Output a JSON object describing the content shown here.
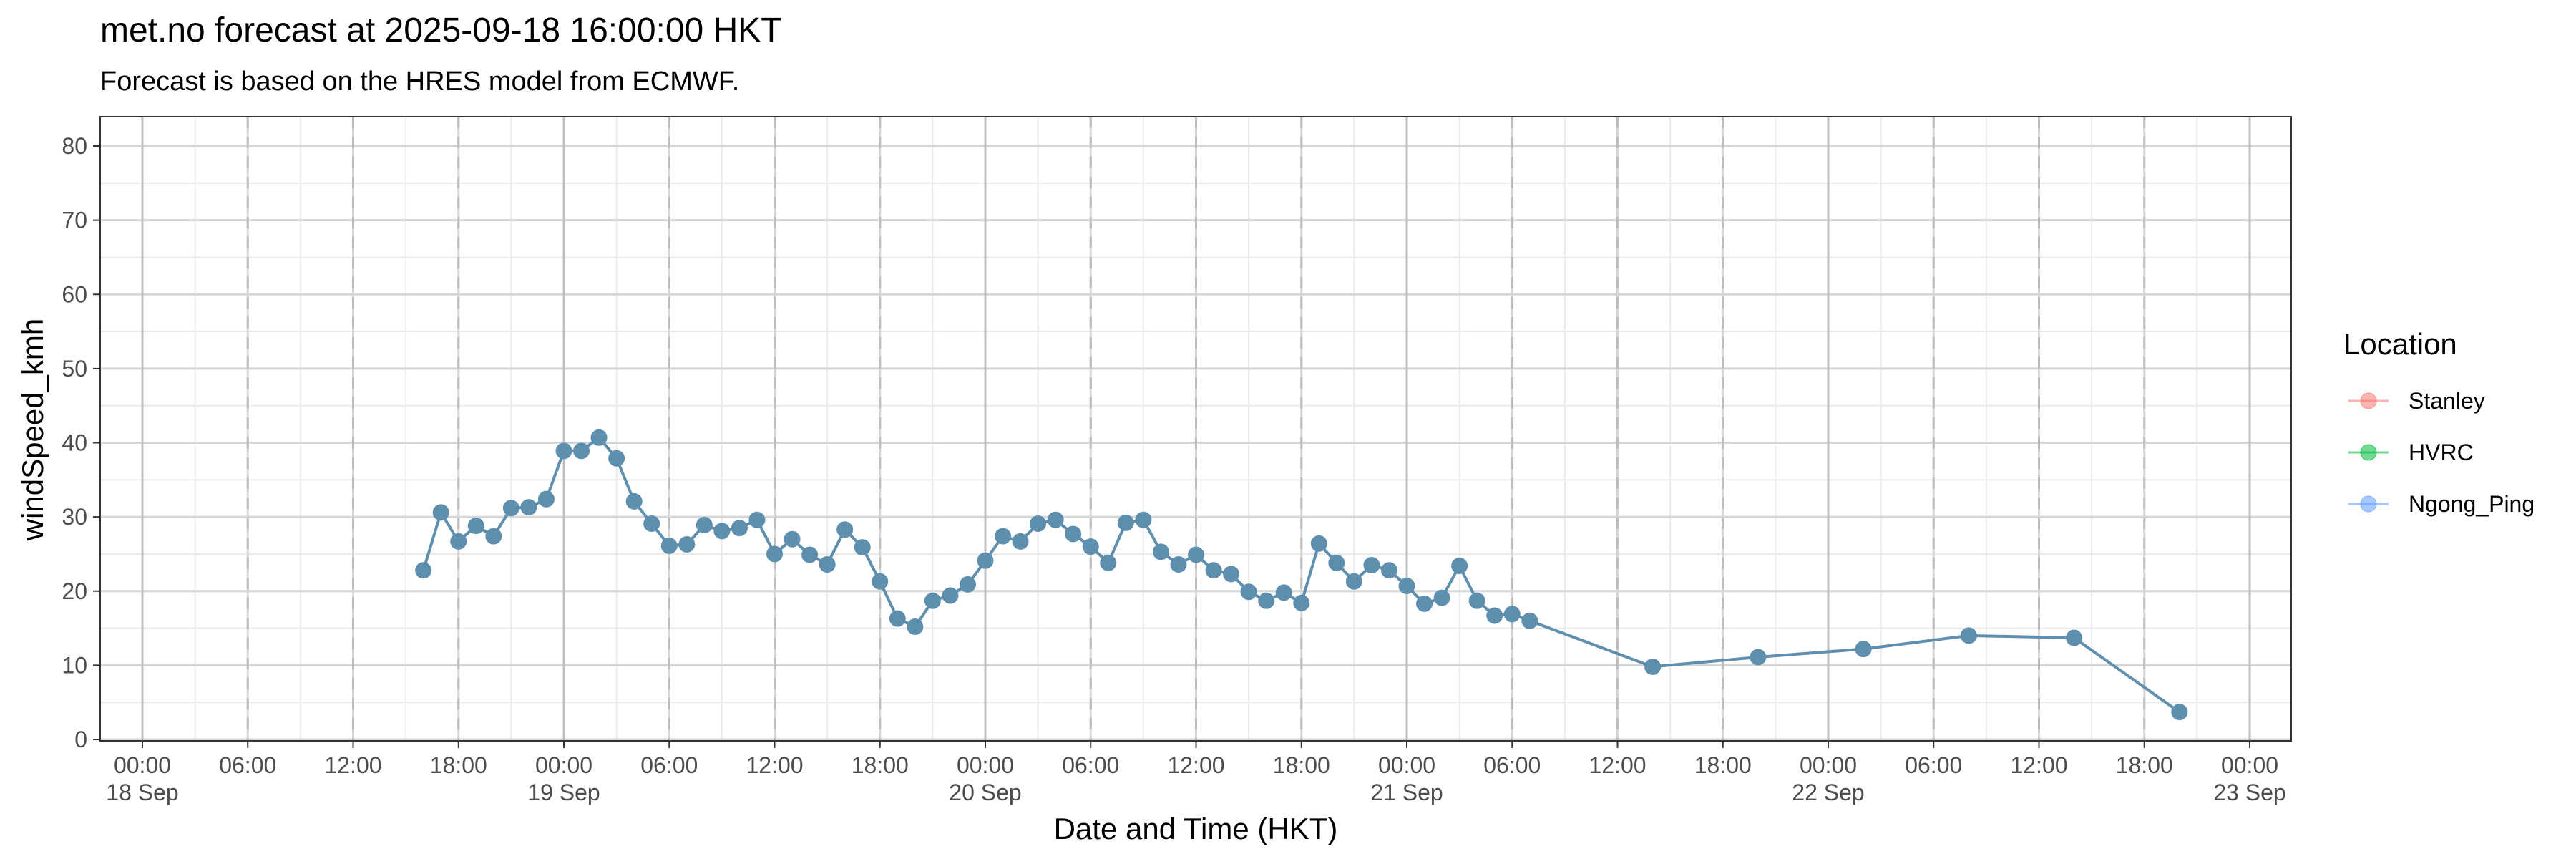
{
  "chart_data": {
    "type": "line",
    "title": "met.no forecast at 2025-09-18 16:00:00 HKT",
    "subtitle": "Forecast is based on the HRES model from ECMWF.",
    "xlabel": "Date and Time (HKT)",
    "ylabel": "windSpeed_kmh",
    "x_range": [
      "2025-09-18 00:00",
      "2025-09-23 00:00"
    ],
    "ylim": [
      0,
      83
    ],
    "yticks": [
      0,
      10,
      20,
      30,
      40,
      50,
      60,
      70,
      80
    ],
    "x_tick_labels": [
      {
        "time": "2025-09-18 00:00",
        "line1": "00:00",
        "line2": "18 Sep"
      },
      {
        "time": "2025-09-18 06:00",
        "line1": "06:00",
        "line2": ""
      },
      {
        "time": "2025-09-18 12:00",
        "line1": "12:00",
        "line2": ""
      },
      {
        "time": "2025-09-18 18:00",
        "line1": "18:00",
        "line2": ""
      },
      {
        "time": "2025-09-19 00:00",
        "line1": "00:00",
        "line2": "19 Sep"
      },
      {
        "time": "2025-09-19 06:00",
        "line1": "06:00",
        "line2": ""
      },
      {
        "time": "2025-09-19 12:00",
        "line1": "12:00",
        "line2": ""
      },
      {
        "time": "2025-09-19 18:00",
        "line1": "18:00",
        "line2": ""
      },
      {
        "time": "2025-09-20 00:00",
        "line1": "00:00",
        "line2": "20 Sep"
      },
      {
        "time": "2025-09-20 06:00",
        "line1": "06:00",
        "line2": ""
      },
      {
        "time": "2025-09-20 12:00",
        "line1": "12:00",
        "line2": ""
      },
      {
        "time": "2025-09-20 18:00",
        "line1": "18:00",
        "line2": ""
      },
      {
        "time": "2025-09-21 00:00",
        "line1": "00:00",
        "line2": "21 Sep"
      },
      {
        "time": "2025-09-21 06:00",
        "line1": "06:00",
        "line2": ""
      },
      {
        "time": "2025-09-21 12:00",
        "line1": "12:00",
        "line2": ""
      },
      {
        "time": "2025-09-21 18:00",
        "line1": "18:00",
        "line2": ""
      },
      {
        "time": "2025-09-22 00:00",
        "line1": "00:00",
        "line2": "22 Sep"
      },
      {
        "time": "2025-09-22 06:00",
        "line1": "06:00",
        "line2": ""
      },
      {
        "time": "2025-09-22 12:00",
        "line1": "12:00",
        "line2": ""
      },
      {
        "time": "2025-09-22 18:00",
        "line1": "18:00",
        "line2": ""
      },
      {
        "time": "2025-09-23 00:00",
        "line1": "00:00",
        "line2": "23 Sep"
      }
    ],
    "grid": true,
    "dashed_vlines_every_hours": 6,
    "legend": {
      "title": "Location",
      "position": "right"
    },
    "series": [
      {
        "name": "Stanley",
        "color": "#F8766D",
        "x": [],
        "values": []
      },
      {
        "name": "HVRC",
        "color": "#00BA38",
        "x": [],
        "values": []
      },
      {
        "name": "Ngong_Ping",
        "color": "#619CFF",
        "plotted_color": "#5F8FAE",
        "x": [
          "2025-09-18 16:00",
          "2025-09-18 17:00",
          "2025-09-18 18:00",
          "2025-09-18 19:00",
          "2025-09-18 20:00",
          "2025-09-18 21:00",
          "2025-09-18 22:00",
          "2025-09-18 23:00",
          "2025-09-19 00:00",
          "2025-09-19 01:00",
          "2025-09-19 02:00",
          "2025-09-19 03:00",
          "2025-09-19 04:00",
          "2025-09-19 05:00",
          "2025-09-19 06:00",
          "2025-09-19 07:00",
          "2025-09-19 08:00",
          "2025-09-19 09:00",
          "2025-09-19 10:00",
          "2025-09-19 11:00",
          "2025-09-19 12:00",
          "2025-09-19 13:00",
          "2025-09-19 14:00",
          "2025-09-19 15:00",
          "2025-09-19 16:00",
          "2025-09-19 17:00",
          "2025-09-19 18:00",
          "2025-09-19 19:00",
          "2025-09-19 20:00",
          "2025-09-19 21:00",
          "2025-09-19 22:00",
          "2025-09-19 23:00",
          "2025-09-20 00:00",
          "2025-09-20 01:00",
          "2025-09-20 02:00",
          "2025-09-20 03:00",
          "2025-09-20 04:00",
          "2025-09-20 05:00",
          "2025-09-20 06:00",
          "2025-09-20 07:00",
          "2025-09-20 08:00",
          "2025-09-20 09:00",
          "2025-09-20 10:00",
          "2025-09-20 11:00",
          "2025-09-20 12:00",
          "2025-09-20 13:00",
          "2025-09-20 14:00",
          "2025-09-20 15:00",
          "2025-09-20 16:00",
          "2025-09-20 17:00",
          "2025-09-20 18:00",
          "2025-09-20 19:00",
          "2025-09-20 20:00",
          "2025-09-20 21:00",
          "2025-09-20 22:00",
          "2025-09-20 23:00",
          "2025-09-21 00:00",
          "2025-09-21 01:00",
          "2025-09-21 02:00",
          "2025-09-21 03:00",
          "2025-09-21 04:00",
          "2025-09-21 05:00",
          "2025-09-21 06:00",
          "2025-09-21 07:00",
          "2025-09-21 14:00",
          "2025-09-21 20:00",
          "2025-09-22 02:00",
          "2025-09-22 08:00",
          "2025-09-22 14:00",
          "2025-09-22 20:00"
        ],
        "values": [
          22.8,
          30.6,
          26.7,
          28.8,
          27.4,
          31.2,
          31.3,
          32.4,
          38.9,
          38.9,
          40.7,
          37.9,
          32.1,
          29.1,
          26.1,
          26.3,
          28.9,
          28.1,
          28.5,
          29.6,
          25.0,
          27.0,
          24.9,
          23.6,
          28.3,
          25.9,
          21.3,
          16.3,
          15.2,
          18.7,
          19.4,
          20.9,
          24.1,
          27.4,
          26.7,
          29.1,
          29.6,
          27.7,
          26.0,
          23.8,
          29.2,
          29.6,
          25.3,
          23.6,
          24.9,
          22.8,
          22.3,
          19.9,
          18.7,
          19.8,
          18.4,
          26.4,
          23.8,
          21.3,
          23.5,
          22.8,
          20.7,
          18.3,
          19.1,
          23.4,
          18.7,
          16.7,
          16.9,
          16.0,
          9.8,
          11.1,
          12.2,
          14.0,
          13.7,
          3.7
        ]
      }
    ]
  }
}
